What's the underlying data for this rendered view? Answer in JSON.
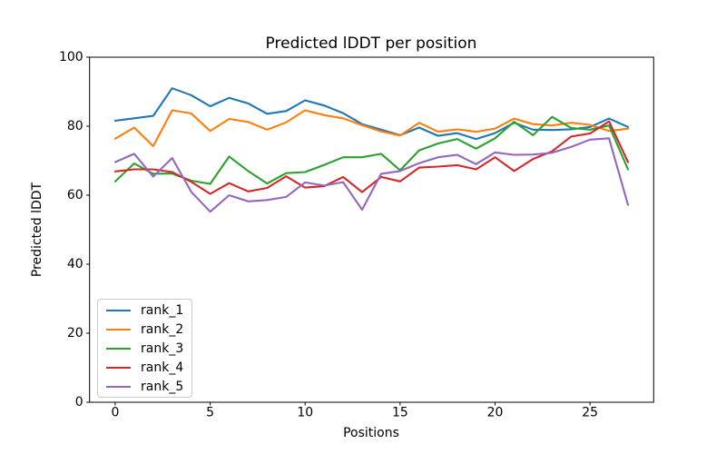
{
  "figure": {
    "background": "#ffffff",
    "text_color": "#000000",
    "spine_color": "#000000"
  },
  "chart_data": {
    "type": "line",
    "title": "Predicted lDDT per position",
    "xlabel": "Positions",
    "ylabel": "Predicted lDDT",
    "xlim": [
      -1.35,
      28.35
    ],
    "ylim": [
      0,
      100
    ],
    "xticks": [
      0,
      5,
      10,
      15,
      20,
      25
    ],
    "yticks": [
      0,
      20,
      40,
      60,
      80,
      100
    ],
    "grid": false,
    "legend_position": "lower left",
    "x": [
      0,
      1,
      2,
      3,
      4,
      5,
      6,
      7,
      8,
      9,
      10,
      11,
      12,
      13,
      14,
      15,
      16,
      17,
      18,
      19,
      20,
      21,
      22,
      23,
      24,
      25,
      26,
      27
    ],
    "series": [
      {
        "name": "rank_1",
        "color": "#1f77b4",
        "values": [
          81.6,
          82.3,
          83.0,
          91.0,
          89.0,
          85.8,
          88.2,
          86.6,
          83.6,
          84.4,
          87.5,
          86.0,
          83.8,
          80.6,
          79.0,
          77.4,
          79.6,
          77.2,
          78.0,
          76.3,
          78.0,
          81.0,
          79.0,
          78.9,
          79.1,
          79.8,
          82.2,
          79.8
        ]
      },
      {
        "name": "rank_2",
        "color": "#ff7f0e",
        "values": [
          76.4,
          79.6,
          74.2,
          84.6,
          83.7,
          78.6,
          82.1,
          81.2,
          79.0,
          81.1,
          84.6,
          83.2,
          82.3,
          80.3,
          78.5,
          77.3,
          81.0,
          78.4,
          79.1,
          78.4,
          79.3,
          82.2,
          80.6,
          80.2,
          81.0,
          80.4,
          78.6,
          79.3
        ]
      },
      {
        "name": "rank_3",
        "color": "#2ca02c",
        "values": [
          64.0,
          69.2,
          66.2,
          66.3,
          64.2,
          63.3,
          71.2,
          67.0,
          63.4,
          66.4,
          66.7,
          68.8,
          71.0,
          71.0,
          72.0,
          67.2,
          73.0,
          75.0,
          76.3,
          73.5,
          76.5,
          81.3,
          77.4,
          82.7,
          79.5,
          79.0,
          80.2,
          67.5
        ]
      },
      {
        "name": "rank_4",
        "color": "#d62728",
        "values": [
          66.9,
          67.5,
          67.5,
          66.7,
          63.9,
          60.4,
          63.5,
          61.1,
          62.1,
          65.5,
          62.2,
          62.6,
          65.3,
          60.9,
          65.3,
          64.0,
          68.0,
          68.3,
          68.7,
          67.5,
          71.0,
          67.0,
          70.5,
          72.7,
          77.0,
          77.9,
          81.4,
          69.6
        ]
      },
      {
        "name": "rank_5",
        "color": "#9467bd",
        "values": [
          69.6,
          72.0,
          65.4,
          70.8,
          61.0,
          55.2,
          60.0,
          58.2,
          58.6,
          59.5,
          63.7,
          62.8,
          63.8,
          55.8,
          66.2,
          67.0,
          69.3,
          71.0,
          71.7,
          69.0,
          72.4,
          71.7,
          71.8,
          72.3,
          74.0,
          76.1,
          76.5,
          57.2
        ]
      }
    ]
  }
}
